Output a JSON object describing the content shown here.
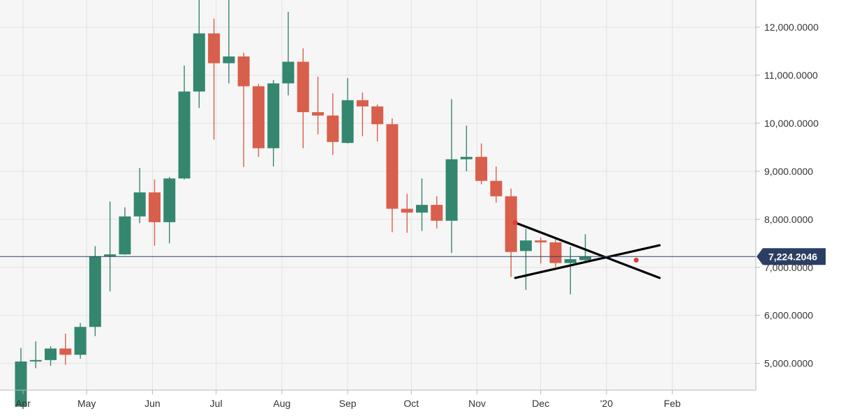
{
  "chart_data": {
    "type": "candlestick",
    "title": "",
    "xlabel": "",
    "ylabel": "",
    "ylim": [
      4450,
      12600
    ],
    "x_tick_labels": [
      "Apr",
      "May",
      "Jun",
      "Jul",
      "Aug",
      "Sep",
      "Oct",
      "Nov",
      "Dec",
      "'20",
      "Feb"
    ],
    "y_tick_labels": [
      "5,000.0000",
      "6,000.0000",
      "7,000.0000",
      "8,000.0000",
      "9,000.0000",
      "10,000.0000",
      "11,000.0000",
      "12,000.0000"
    ],
    "y_ticks": [
      5000,
      6000,
      7000,
      8000,
      9000,
      10000,
      11000,
      12000
    ],
    "x_ticks": [
      "2019-04-01",
      "2019-05-01",
      "2019-06-01",
      "2019-07-01",
      "2019-08-01",
      "2019-09-01",
      "2019-10-01",
      "2019-11-01",
      "2019-12-01",
      "2020-01-01",
      "2020-02-01"
    ],
    "grid": true,
    "current_price": 7224.2046,
    "current_price_label": "7,224.2046",
    "candles": [
      {
        "date": "2019-03-31",
        "open": 4100,
        "high": 5320,
        "low": 4100,
        "close": 5040
      },
      {
        "date": "2019-04-07",
        "open": 5040,
        "high": 5460,
        "low": 4900,
        "close": 5070
      },
      {
        "date": "2019-04-14",
        "open": 5070,
        "high": 5360,
        "low": 4950,
        "close": 5310
      },
      {
        "date": "2019-04-21",
        "open": 5310,
        "high": 5620,
        "low": 4970,
        "close": 5180
      },
      {
        "date": "2019-04-28",
        "open": 5180,
        "high": 5840,
        "low": 5100,
        "close": 5760
      },
      {
        "date": "2019-05-05",
        "open": 5760,
        "high": 7440,
        "low": 5570,
        "close": 7230
      },
      {
        "date": "2019-05-12",
        "open": 7230,
        "high": 8370,
        "low": 6500,
        "close": 7270
      },
      {
        "date": "2019-05-19",
        "open": 7270,
        "high": 8250,
        "low": 7260,
        "close": 8060
      },
      {
        "date": "2019-05-26",
        "open": 8060,
        "high": 9070,
        "low": 7920,
        "close": 8560
      },
      {
        "date": "2019-06-02",
        "open": 8560,
        "high": 8830,
        "low": 7450,
        "close": 7940
      },
      {
        "date": "2019-06-09",
        "open": 7940,
        "high": 8880,
        "low": 7500,
        "close": 8850
      },
      {
        "date": "2019-06-16",
        "open": 8850,
        "high": 11200,
        "low": 8830,
        "close": 10660
      },
      {
        "date": "2019-06-23",
        "open": 10660,
        "high": 12800,
        "low": 10320,
        "close": 11870
      },
      {
        "date": "2019-06-30",
        "open": 11870,
        "high": 12180,
        "low": 9660,
        "close": 11250
      },
      {
        "date": "2019-07-07",
        "open": 11250,
        "high": 12900,
        "low": 10830,
        "close": 11390
      },
      {
        "date": "2019-07-14",
        "open": 11390,
        "high": 11470,
        "low": 9090,
        "close": 10770
      },
      {
        "date": "2019-07-21",
        "open": 10770,
        "high": 10820,
        "low": 9300,
        "close": 9480
      },
      {
        "date": "2019-07-28",
        "open": 9480,
        "high": 10900,
        "low": 9100,
        "close": 10830
      },
      {
        "date": "2019-08-04",
        "open": 10830,
        "high": 12320,
        "low": 10580,
        "close": 11280
      },
      {
        "date": "2019-08-11",
        "open": 11280,
        "high": 11560,
        "low": 9480,
        "close": 10230
      },
      {
        "date": "2019-08-18",
        "open": 10230,
        "high": 10970,
        "low": 9770,
        "close": 10160
      },
      {
        "date": "2019-08-25",
        "open": 10160,
        "high": 10620,
        "low": 9340,
        "close": 9610
      },
      {
        "date": "2019-09-01",
        "open": 9590,
        "high": 10940,
        "low": 9580,
        "close": 10480
      },
      {
        "date": "2019-09-08",
        "open": 10480,
        "high": 10640,
        "low": 9730,
        "close": 10350
      },
      {
        "date": "2019-09-15",
        "open": 10350,
        "high": 10390,
        "low": 9620,
        "close": 9980
      },
      {
        "date": "2019-09-22",
        "open": 9980,
        "high": 10100,
        "low": 7730,
        "close": 8220
      },
      {
        "date": "2019-09-29",
        "open": 8220,
        "high": 8530,
        "low": 7720,
        "close": 8140
      },
      {
        "date": "2019-10-06",
        "open": 8140,
        "high": 8850,
        "low": 7760,
        "close": 8300
      },
      {
        "date": "2019-10-13",
        "open": 8300,
        "high": 8480,
        "low": 7810,
        "close": 7970
      },
      {
        "date": "2019-10-20",
        "open": 7970,
        "high": 10500,
        "low": 7300,
        "close": 9250
      },
      {
        "date": "2019-10-27",
        "open": 9250,
        "high": 9950,
        "low": 9000,
        "close": 9300
      },
      {
        "date": "2019-11-03",
        "open": 9300,
        "high": 9580,
        "low": 8730,
        "close": 8800
      },
      {
        "date": "2019-11-10",
        "open": 8800,
        "high": 9100,
        "low": 8350,
        "close": 8480
      },
      {
        "date": "2019-11-17",
        "open": 8480,
        "high": 8640,
        "low": 6800,
        "close": 7320
      },
      {
        "date": "2019-11-24",
        "open": 7340,
        "high": 7800,
        "low": 6530,
        "close": 7560
      },
      {
        "date": "2019-12-01",
        "open": 7560,
        "high": 7620,
        "low": 7080,
        "close": 7520
      },
      {
        "date": "2019-12-08",
        "open": 7520,
        "high": 7610,
        "low": 7010,
        "close": 7090
      },
      {
        "date": "2019-12-15",
        "open": 7090,
        "high": 7430,
        "low": 6440,
        "close": 7170
      },
      {
        "date": "2019-12-22",
        "open": 7150,
        "high": 7690,
        "low": 7120,
        "close": 7224
      }
    ],
    "trendlines": [
      {
        "name": "upper",
        "from": {
          "date": "2019-11-19",
          "value": 7930
        },
        "to": {
          "date": "2020-01-26",
          "value": 6780
        }
      },
      {
        "name": "lower",
        "from": {
          "date": "2019-11-19",
          "value": 6780
        },
        "to": {
          "date": "2020-01-26",
          "value": 7460
        }
      }
    ],
    "colors": {
      "up": "#34866f",
      "down": "#d85f4b",
      "price_line": "#2b3e63",
      "price_tag": "#2b3e63",
      "trendline": "#000000",
      "marker": "#e03c2e",
      "plot_background": "#f6f6f6",
      "grid": "#e2e2e2"
    }
  }
}
